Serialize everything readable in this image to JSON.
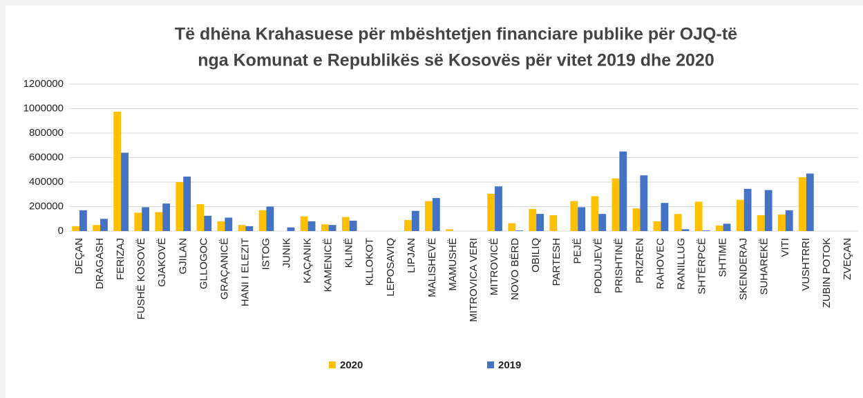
{
  "chart_data": {
    "type": "bar",
    "title": [
      "Të dhëna Krahasuese për mbështetjen financiare publike për OJQ-të",
      "nga Komunat e Republikës së Kosovës për vitet 2019 dhe 2020"
    ],
    "categories": [
      "DEÇAN",
      "DRAGASH",
      "FERIZAJ",
      "FUSHË KOSOVË",
      "GJAKOVË",
      "GJILAN",
      "GLLOGOC",
      "GRAÇANICË",
      "HANI I ELEZIT",
      "ISTOG",
      "JUNIK",
      "KAÇANIK",
      "KAMENICË",
      "KLINË",
      "KLLOKOT",
      "LEPOSAVIQ",
      "LIPJAN",
      "MALISHEVË",
      "MAMUSHË",
      "MITROVICA VERI",
      "MITROVICË",
      "NOVO BËRD",
      "OBILIQ",
      "PARTESH",
      "PEJË",
      "PODUJEVË",
      "PRISHTINË",
      "PRIZREN",
      "RAHOVEC",
      "RANILLUG",
      "SHTËRPCË",
      "SHTIME",
      "SKENDERAJ",
      "SUHAREKË",
      "VITI",
      "VUSHTRRI",
      "ZUBIN POTOK",
      "ZVEÇAN"
    ],
    "series": [
      {
        "name": "2020",
        "color": "#FFC000",
        "values": [
          40000,
          50000,
          975000,
          150000,
          155000,
          400000,
          220000,
          80000,
          50000,
          170000,
          0,
          120000,
          55000,
          115000,
          0,
          0,
          90000,
          245000,
          15000,
          0,
          305000,
          65000,
          180000,
          130000,
          245000,
          285000,
          430000,
          185000,
          80000,
          140000,
          240000,
          45000,
          255000,
          130000,
          135000,
          440000,
          0,
          0
        ]
      },
      {
        "name": "2019",
        "color": "#4472C4",
        "values": [
          170000,
          100000,
          640000,
          195000,
          225000,
          445000,
          125000,
          110000,
          40000,
          200000,
          30000,
          80000,
          50000,
          85000,
          0,
          0,
          165000,
          270000,
          0,
          0,
          365000,
          5000,
          140000,
          0,
          195000,
          140000,
          650000,
          455000,
          230000,
          15000,
          5000,
          60000,
          345000,
          335000,
          170000,
          470000,
          0,
          0
        ]
      }
    ],
    "ylim": [
      0,
      1200000
    ],
    "yticks": [
      0,
      200000,
      400000,
      600000,
      800000,
      1000000,
      1200000
    ],
    "grid": true,
    "legend": "bottom"
  }
}
